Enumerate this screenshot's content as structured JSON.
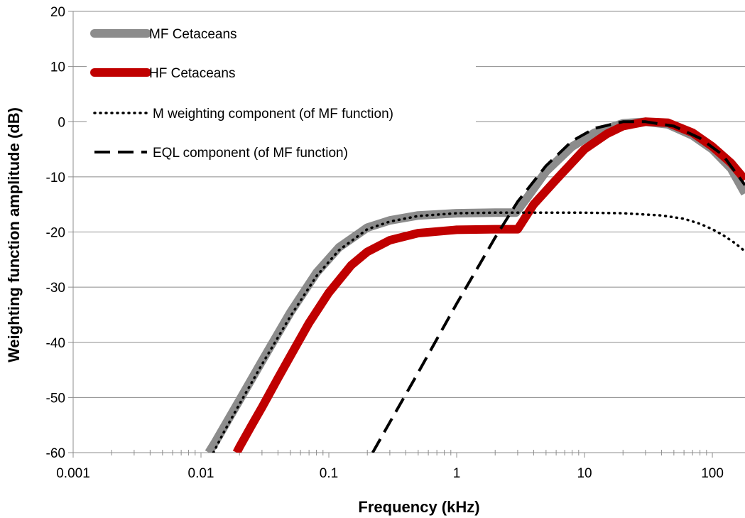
{
  "chart_data": {
    "type": "line",
    "title": "",
    "xlabel": "Frequency (kHz)",
    "ylabel": "Weighting function amplitude (dB)",
    "x_scale": "log",
    "xlim": [
      0.001,
      180
    ],
    "ylim": [
      -60,
      20
    ],
    "x_ticks": [
      "0.001",
      "0.01",
      "0.1",
      "1",
      "10",
      "100"
    ],
    "y_ticks": [
      "20",
      "10",
      "0",
      "-10",
      "-20",
      "-30",
      "-40",
      "-50",
      "-60"
    ],
    "grid": "horizontal",
    "legend_position": "top-left",
    "colors": {
      "mf": "#8c8c8c",
      "hf": "#c00000",
      "m_weighting": "#000000",
      "eql": "#000000",
      "grid": "#8c8c8c"
    },
    "series": [
      {
        "name": "MF Cetaceans",
        "style": "thick-solid",
        "x": [
          0.0115,
          0.013,
          0.015,
          0.02,
          0.03,
          0.05,
          0.08,
          0.12,
          0.2,
          0.3,
          0.5,
          1,
          2,
          2.9,
          3.5,
          5,
          8,
          12,
          20,
          30,
          45,
          70,
          100,
          140,
          180
        ],
        "y": [
          -60,
          -58,
          -55.5,
          -50.5,
          -43.4,
          -34.6,
          -27.4,
          -22.8,
          -19.2,
          -17.9,
          -17,
          -16.6,
          -16.5,
          -16.5,
          -14,
          -9,
          -4.5,
          -2,
          -0.3,
          0,
          -0.5,
          -2.5,
          -5,
          -8.5,
          -13
        ]
      },
      {
        "name": "HF Cetaceans",
        "style": "thick-solid",
        "x": [
          0.019,
          0.02,
          0.025,
          0.03,
          0.04,
          0.05,
          0.07,
          0.1,
          0.15,
          0.2,
          0.3,
          0.5,
          1,
          2,
          3,
          4,
          6,
          10,
          15,
          20,
          30,
          45,
          70,
          100,
          140,
          180
        ],
        "y": [
          -60,
          -59,
          -55,
          -51.8,
          -46.5,
          -42.5,
          -36.5,
          -31,
          -26,
          -23.6,
          -21.5,
          -20.2,
          -19.6,
          -19.5,
          -19.5,
          -15,
          -10.5,
          -5,
          -2.2,
          -0.8,
          0,
          -0.2,
          -2,
          -4.5,
          -7.5,
          -10.5
        ]
      },
      {
        "name": "M weighting component (of MF function)",
        "style": "dotted",
        "x": [
          0.0125,
          0.015,
          0.02,
          0.03,
          0.05,
          0.08,
          0.12,
          0.2,
          0.3,
          0.5,
          1,
          2,
          5,
          10,
          20,
          40,
          60,
          80,
          100,
          120,
          150,
          180
        ],
        "y": [
          -60,
          -56.4,
          -51.2,
          -44,
          -35.3,
          -28,
          -23.3,
          -19.5,
          -18.1,
          -17.1,
          -16.6,
          -16.5,
          -16.5,
          -16.5,
          -16.6,
          -17,
          -17.6,
          -18.5,
          -19.5,
          -20.5,
          -22,
          -23.5
        ]
      },
      {
        "name": "EQL component (of MF function)",
        "style": "dashed",
        "x": [
          0.22,
          0.3,
          0.5,
          0.8,
          1,
          1.5,
          2,
          3,
          5,
          8,
          12,
          20,
          30,
          50,
          80,
          120,
          180
        ],
        "y": [
          -60,
          -54.5,
          -45.5,
          -37,
          -33,
          -26,
          -21,
          -14.5,
          -8,
          -3.5,
          -1.2,
          0,
          0,
          -0.8,
          -3,
          -6,
          -11.5
        ]
      }
    ]
  }
}
